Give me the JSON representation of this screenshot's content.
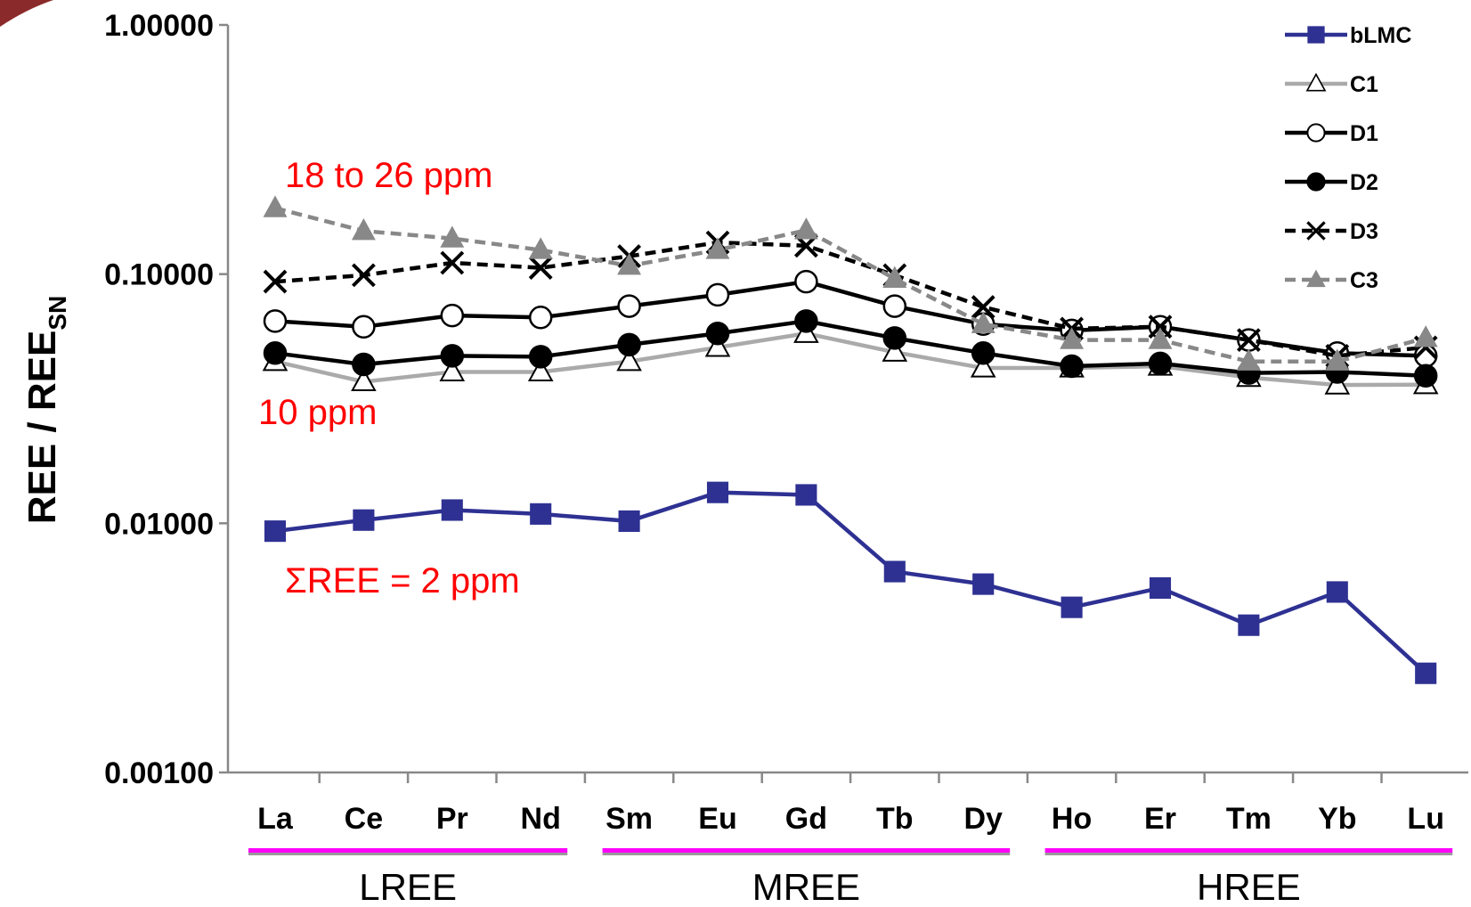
{
  "chart_data": {
    "type": "line",
    "ylabel": "REE / REE",
    "ylabel_sub": "SN",
    "yscale": "log",
    "ylim": [
      0.001,
      1
    ],
    "yticks": [
      {
        "value": 1,
        "label": "1.00000"
      },
      {
        "value": 0.1,
        "label": "0.10000"
      },
      {
        "value": 0.01,
        "label": "0.01000"
      },
      {
        "value": 0.001,
        "label": "0.00100"
      }
    ],
    "categories": [
      "La",
      "Ce",
      "Pr",
      "Nd",
      "Sm",
      "Eu",
      "Gd",
      "Tb",
      "Dy",
      "Ho",
      "Er",
      "Tm",
      "Yb",
      "Lu"
    ],
    "groups": [
      "LREE",
      "MREE",
      "HREE"
    ],
    "annotations": [
      "18 to 26 ppm",
      "10 ppm",
      "ΣREE = 2 ppm"
    ],
    "legend": "upper right",
    "series": [
      {
        "name": "bLMC",
        "color": "#2e3192",
        "marker": "square",
        "dash": false,
        "values": [
          0.0093,
          0.0103,
          0.0113,
          0.0109,
          0.0102,
          0.0133,
          0.013,
          0.0064,
          0.0057,
          0.0046,
          0.0055,
          0.0039,
          0.0053,
          0.0025
        ]
      },
      {
        "name": "C1",
        "color": "#aaaaaa",
        "marker": "triangle-open",
        "dash": false,
        "values": [
          0.0446,
          0.037,
          0.0405,
          0.0405,
          0.0446,
          0.0508,
          0.0578,
          0.0486,
          0.042,
          0.042,
          0.0427,
          0.0385,
          0.0359,
          0.036
        ]
      },
      {
        "name": "D1",
        "color": "#000000",
        "marker": "circle-open",
        "dash": false,
        "values": [
          0.0648,
          0.0615,
          0.0682,
          0.067,
          0.0744,
          0.0826,
          0.0933,
          0.0744,
          0.063,
          0.0594,
          0.0615,
          0.0544,
          0.0482,
          0.047
        ]
      },
      {
        "name": "D2",
        "color": "#000000",
        "marker": "circle",
        "dash": false,
        "values": [
          0.0482,
          0.0434,
          0.047,
          0.0466,
          0.0521,
          0.0578,
          0.0648,
          0.0554,
          0.0482,
          0.0427,
          0.0438,
          0.0401,
          0.0405,
          0.0391
        ]
      },
      {
        "name": "D3",
        "color": "#000000",
        "marker": "x",
        "dash": true,
        "values": [
          0.0933,
          0.099,
          0.111,
          0.106,
          0.118,
          0.134,
          0.13,
          0.099,
          0.0738,
          0.0604,
          0.0615,
          0.0544,
          0.047,
          0.0508
        ]
      },
      {
        "name": "C3",
        "color": "#888888",
        "marker": "triangle",
        "dash": true,
        "values": [
          0.184,
          0.149,
          0.139,
          0.125,
          0.108,
          0.125,
          0.15,
          0.0958,
          0.063,
          0.0544,
          0.0544,
          0.0446,
          0.0446,
          0.0554
        ]
      }
    ]
  }
}
